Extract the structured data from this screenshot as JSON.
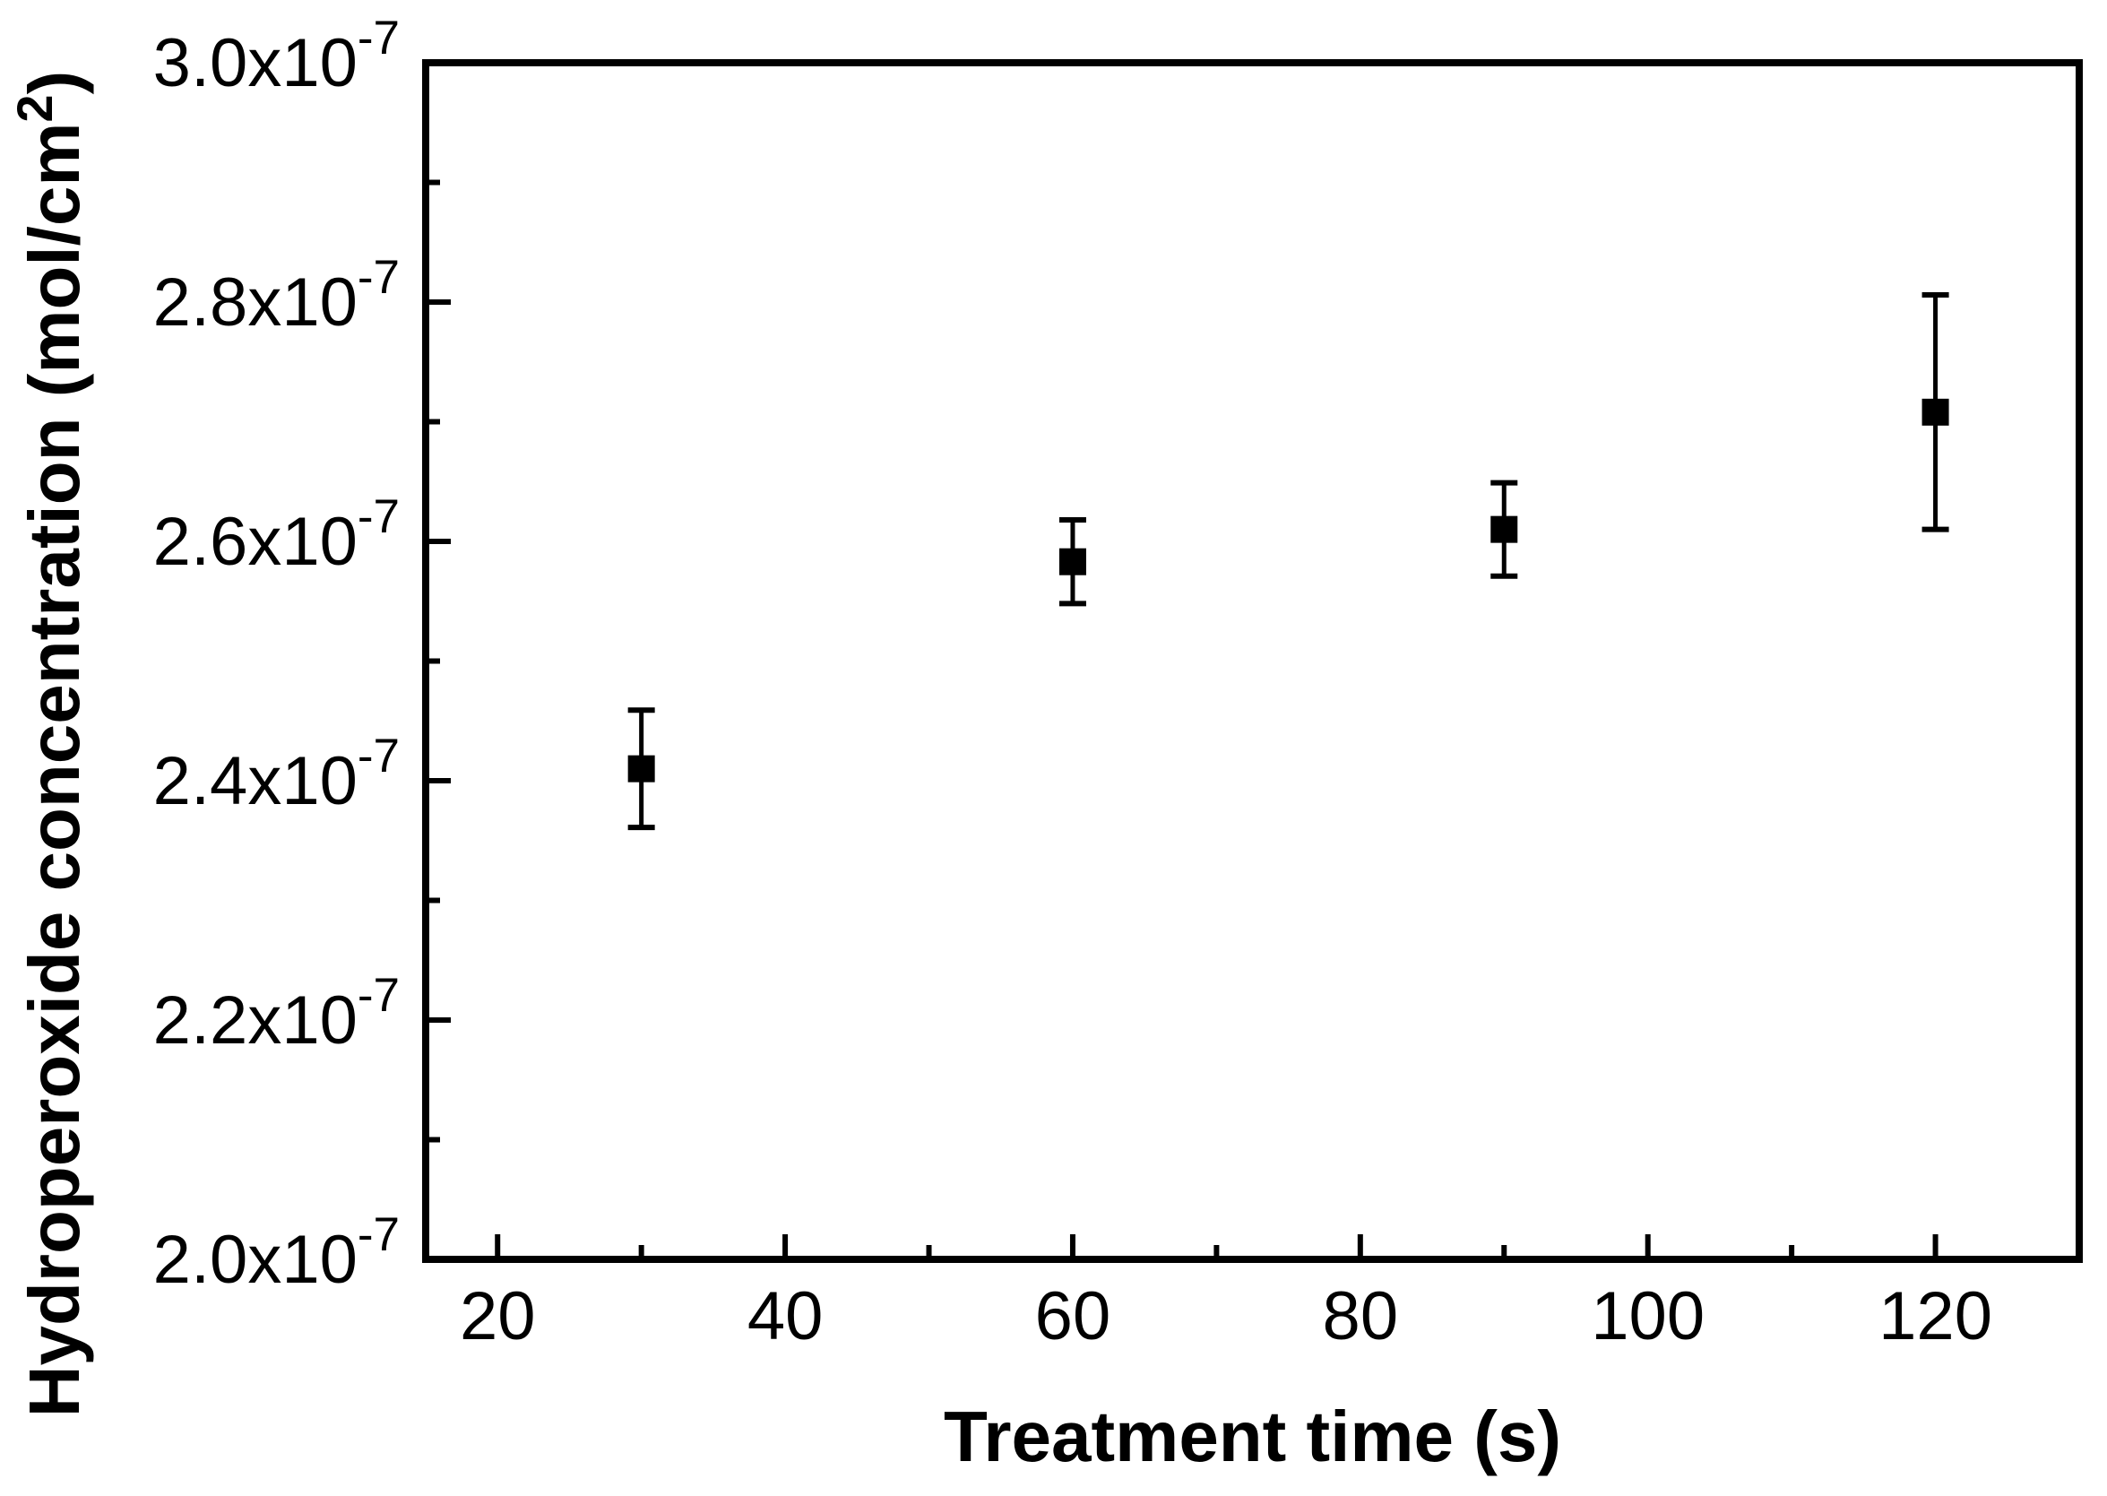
{
  "figure": {
    "background": "#ffffff",
    "foreground": "#000000"
  },
  "chart_data": {
    "type": "scatter",
    "title": "",
    "xlabel": "Treatment time (s)",
    "ylabel": "Hydroperoxide concentration (mol/cm2)",
    "ylabel_parts": [
      {
        "t": "Hydroperoxide concentration (mol/cm",
        "sup": false
      },
      {
        "t": "2",
        "sup": true
      },
      {
        "t": ")",
        "sup": false
      }
    ],
    "x_axis": {
      "lim": [
        15,
        130
      ],
      "major_ticks": [
        {
          "v": 20,
          "label": "20"
        },
        {
          "v": 40,
          "label": "40"
        },
        {
          "v": 60,
          "label": "60"
        },
        {
          "v": 80,
          "label": "80"
        },
        {
          "v": 100,
          "label": "100"
        },
        {
          "v": 120,
          "label": "120"
        }
      ],
      "minor_ticks": [
        30,
        50,
        70,
        90,
        110
      ]
    },
    "y_axis": {
      "unit_exponent": "-7",
      "lim": [
        2.0,
        3.0
      ],
      "major_ticks": [
        {
          "v": 2.0,
          "mantissa": "2.0x10",
          "exp": "-7"
        },
        {
          "v": 2.2,
          "mantissa": "2.2x10",
          "exp": "-7"
        },
        {
          "v": 2.4,
          "mantissa": "2.4x10",
          "exp": "-7"
        },
        {
          "v": 2.6,
          "mantissa": "2.6x10",
          "exp": "-7"
        },
        {
          "v": 2.8,
          "mantissa": "2.8x10",
          "exp": "-7"
        },
        {
          "v": 3.0,
          "mantissa": "3.0x10",
          "exp": "-7"
        }
      ],
      "minor_ticks": [
        2.1,
        2.3,
        2.5,
        2.7,
        2.9
      ]
    },
    "series": [
      {
        "name": "hydroperoxide-concentration",
        "marker": "filled-square",
        "color": "#000000",
        "points": [
          {
            "x": 30,
            "y": 2.41,
            "err": 0.049
          },
          {
            "x": 60,
            "y": 2.583,
            "err": 0.035
          },
          {
            "x": 90,
            "y": 2.61,
            "err": 0.039
          },
          {
            "x": 120,
            "y": 2.708,
            "err": 0.098
          }
        ]
      }
    ],
    "grid": false,
    "legend": "none",
    "frame": "full-box"
  }
}
